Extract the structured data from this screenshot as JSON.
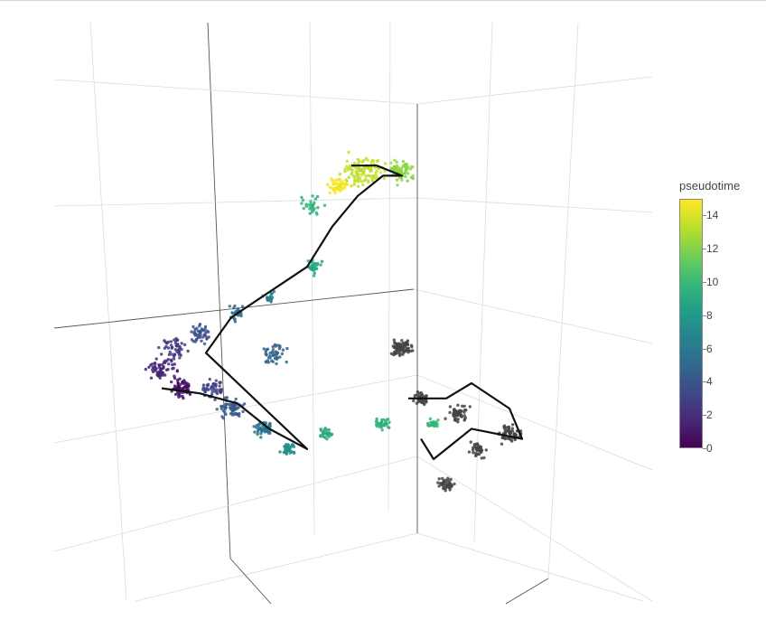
{
  "chart_data": {
    "type": "scatter",
    "projection": "3d",
    "grid": true,
    "colorscale": "viridis",
    "colorbar": {
      "title": "pseudotime",
      "range": [
        0,
        15
      ],
      "ticks": [
        "0",
        "2",
        "4",
        "6",
        "8",
        "10",
        "12",
        "14"
      ],
      "tick_values": [
        0,
        2,
        4,
        6,
        8,
        10,
        12,
        14
      ]
    },
    "series": [
      {
        "colored_by": "pseudotime",
        "clusters": [
          {
            "u": 0.2,
            "v": 0.66,
            "spread": 0.018,
            "n": 70,
            "pt": 0.8
          },
          {
            "u": 0.17,
            "v": 0.62,
            "spread": 0.02,
            "n": 60,
            "pt": 1.6
          },
          {
            "u": 0.19,
            "v": 0.58,
            "spread": 0.02,
            "n": 50,
            "pt": 2.6
          },
          {
            "u": 0.23,
            "v": 0.55,
            "spread": 0.018,
            "n": 45,
            "pt": 3.6
          },
          {
            "u": 0.25,
            "v": 0.66,
            "spread": 0.018,
            "n": 50,
            "pt": 3.0
          },
          {
            "u": 0.28,
            "v": 0.7,
            "spread": 0.018,
            "n": 60,
            "pt": 4.2
          },
          {
            "u": 0.33,
            "v": 0.74,
            "spread": 0.015,
            "n": 55,
            "pt": 5.8
          },
          {
            "u": 0.35,
            "v": 0.59,
            "spread": 0.022,
            "n": 45,
            "pt": 4.8
          },
          {
            "u": 0.29,
            "v": 0.51,
            "spread": 0.014,
            "n": 30,
            "pt": 5.4
          },
          {
            "u": 0.34,
            "v": 0.48,
            "spread": 0.01,
            "n": 20,
            "pt": 6.6
          },
          {
            "u": 0.41,
            "v": 0.42,
            "spread": 0.012,
            "n": 35,
            "pt": 9.0
          },
          {
            "u": 0.41,
            "v": 0.3,
            "spread": 0.018,
            "n": 30,
            "pt": 9.8
          },
          {
            "u": 0.49,
            "v": 0.23,
            "spread": 0.03,
            "n": 120,
            "pt": 13.6
          },
          {
            "u": 0.55,
            "v": 0.23,
            "spread": 0.02,
            "n": 70,
            "pt": 12.4
          },
          {
            "u": 0.45,
            "v": 0.26,
            "spread": 0.014,
            "n": 50,
            "pt": 14.8
          },
          {
            "u": 0.37,
            "v": 0.78,
            "spread": 0.012,
            "n": 35,
            "pt": 7.4
          },
          {
            "u": 0.43,
            "v": 0.75,
            "spread": 0.01,
            "n": 30,
            "pt": 9.2
          },
          {
            "u": 0.52,
            "v": 0.73,
            "spread": 0.012,
            "n": 35,
            "pt": 9.6
          },
          {
            "u": 0.6,
            "v": 0.73,
            "spread": 0.01,
            "n": 25,
            "pt": 9.8
          }
        ],
        "trajectory": [
          [
            0.17,
            0.66
          ],
          [
            0.23,
            0.67
          ],
          [
            0.29,
            0.69
          ],
          [
            0.34,
            0.74
          ],
          [
            0.4,
            0.78
          ],
          [
            0.24,
            0.59
          ],
          [
            0.28,
            0.52
          ],
          [
            0.34,
            0.47
          ],
          [
            0.4,
            0.42
          ],
          [
            0.44,
            0.34
          ],
          [
            0.48,
            0.28
          ],
          [
            0.52,
            0.24
          ],
          [
            0.55,
            0.24
          ],
          [
            0.51,
            0.22
          ],
          [
            0.47,
            0.22
          ]
        ]
      },
      {
        "colored_by": "none",
        "color": "#444444",
        "clusters": [
          {
            "u": 0.55,
            "v": 0.58,
            "spread": 0.015,
            "n": 90
          },
          {
            "u": 0.58,
            "v": 0.68,
            "spread": 0.012,
            "n": 40
          },
          {
            "u": 0.64,
            "v": 0.71,
            "spread": 0.014,
            "n": 50
          },
          {
            "u": 0.72,
            "v": 0.75,
            "spread": 0.016,
            "n": 60
          },
          {
            "u": 0.67,
            "v": 0.78,
            "spread": 0.012,
            "n": 40
          },
          {
            "u": 0.62,
            "v": 0.85,
            "spread": 0.012,
            "n": 40
          }
        ],
        "trajectory": [
          [
            0.56,
            0.68
          ],
          [
            0.62,
            0.68
          ],
          [
            0.66,
            0.65
          ],
          [
            0.72,
            0.7
          ],
          [
            0.74,
            0.76
          ],
          [
            0.66,
            0.74
          ],
          [
            0.6,
            0.8
          ],
          [
            0.58,
            0.76
          ]
        ]
      }
    ]
  }
}
